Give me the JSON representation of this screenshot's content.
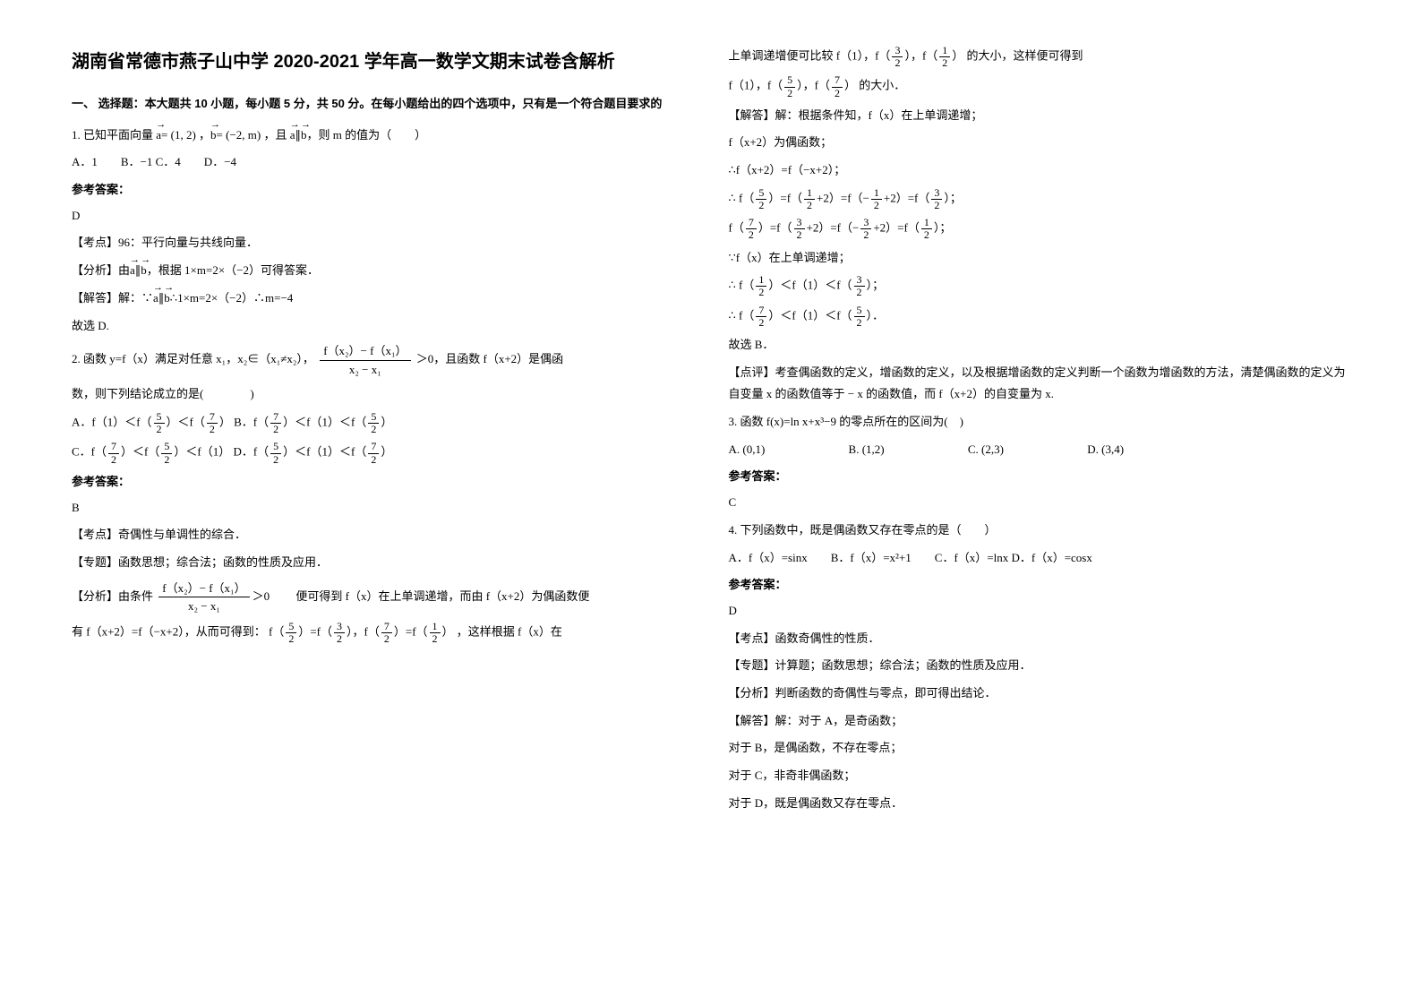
{
  "title": "湖南省常德市燕子山中学 2020-2021 学年高一数学文期末试卷含解析",
  "section1_intro": "一、 选择题：本大题共 10 小题，每小题 5 分，共 50 分。在每小题给出的四个选项中，只有是一个符合题目要求的",
  "q1": {
    "stem_prefix": "1. 已知平面向量 ",
    "a_eq": "= (1, 2) ，",
    "b_eq": "= (−2, m) ，且 ",
    "cond": "，则 m 的值为（　　）",
    "opts": "A．1　　B．−1 C．4　　D．−4",
    "ans_label": "参考答案：",
    "ans": "D",
    "kd": "【考点】96：平行向量与共线向量．",
    "fx_prefix": "【分析】由",
    "fx_suffix": "，根据 1×m=2×（−2）可得答案．",
    "jd_prefix": "【解答】解：∵",
    "jd_suffix": "∴1×m=2×（−2）∴m=−4",
    "end": "故选 D."
  },
  "q2": {
    "stem_a": "2. 函数 y=f（x）满足对任意 x₁，x₂∈（x₁≠x₂），",
    "frac_num": "f（x₂）− f（x₁）",
    "frac_den": "x₂ − x₁",
    "stem_b": "＞0，且函数 f（x+2）是偶函",
    "stem_c": "数，则下列结论成立的是(　　　　)",
    "optA_a": "A．f（1）＜f（",
    "optA_b": "）＜f（",
    "optA_c": "） B．f（",
    "optA_d": "）＜f（1）＜f（",
    "optA_e": "）",
    "optC_a": "C．f（",
    "optC_b": "）＜f（",
    "optC_c": "）＜f（1） D．f（",
    "optC_d": "）＜f（1）＜f（",
    "optC_e": "）",
    "ans_label": "参考答案：",
    "ans": "B",
    "kd": "【考点】奇偶性与单调性的综合．",
    "zt": "【专题】函数思想；综合法；函数的性质及应用．",
    "fx_a": "【分析】由条件",
    "fx_b": "＞0",
    "fx_c": "便可得到 f（x）在上单调递增，而由 f（x+2）为偶函数便",
    "fx_d": "有 f（x+2）=f（−x+2），从而可得到：",
    "fx_e": "，这样根据 f（x）在"
  },
  "col2": {
    "l1a": "上单调递增便可比较",
    "l1b": "的大小，这样便可得到",
    "l2a": "f（1），f（",
    "l2b": "），f（",
    "l2c": "）",
    "l2d": "的大小．",
    "jd1": "【解答】解：根据条件知，f（x）在上单调递增；",
    "jd2": "f（x+2）为偶函数；",
    "jd3": "∴f（x+2）=f（−x+2）；",
    "jd4a": "∴",
    "jd4b": "f（",
    "jd4c": "）=f（",
    "jd4d": "+2）=f（−",
    "jd4e": "+2）=f（",
    "jd4f": "）",
    "jd5a": "f（",
    "jd5b": "）=f（",
    "jd5c": "+2）=f（−",
    "jd5d": "+2）=f（",
    "jd5e": "）",
    "jd6": "∵f（x）在上单调递增；",
    "jd7a": "∴",
    "jd7b": "f（",
    "jd7c": "）＜f（1）＜f（",
    "jd7d": "）",
    "jd8a": "∴",
    "jd8b": "f（",
    "jd8c": "）＜f（1）＜f（",
    "jd8d": "）",
    "jd9": "故选 B．",
    "dp": "【点评】考查偶函数的定义，增函数的定义，以及根据增函数的定义判断一个函数为增函数的方法，清楚偶函数的定义为自变量 x 的函数值等于 − x 的函数值，而 f（x+2）的自变量为 x."
  },
  "q3": {
    "stem": "3. 函数 f(x)=ln x+x³−9 的零点所在的区间为(　)",
    "optA": "A. (0,1)",
    "optB": "B. (1,2)",
    "optC": "C. (2,3)",
    "optD": "D. (3,4)",
    "ans_label": "参考答案：",
    "ans": "C"
  },
  "q4": {
    "stem": "4. 下列函数中，既是偶函数又存在零点的是（　　）",
    "opts": "A．f（x）=sinx　　B．f（x）=x²+1　　C．f（x）=lnx D．f（x）=cosx",
    "ans_label": "参考答案：",
    "ans": "D",
    "kd": "【考点】函数奇偶性的性质．",
    "zt": "【专题】计算题；函数思想；综合法；函数的性质及应用．",
    "fx": "【分析】判断函数的奇偶性与零点，即可得出结论．",
    "jd1": "【解答】解：对于 A，是奇函数；",
    "jd2": "对于 B，是偶函数，不存在零点；",
    "jd3": "对于 C，非奇非偶函数；",
    "jd4": "对于 D，既是偶函数又存在零点．"
  },
  "fracs": {
    "n5": "5",
    "n7": "7",
    "n3": "3",
    "n1": "1",
    "d2": "2"
  }
}
